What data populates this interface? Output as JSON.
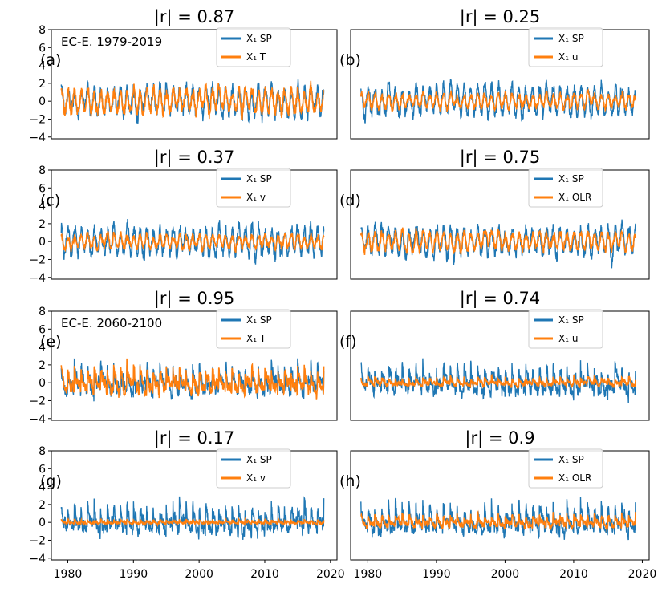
{
  "figure": {
    "colors": {
      "sp": "#1f77b4",
      "var": "#ff7f0e"
    },
    "x_ticks": [
      "1980",
      "1990",
      "2000",
      "2010",
      "2020"
    ],
    "y_ticks": [
      "8",
      "6",
      "4",
      "2",
      "0",
      "−2",
      "−4"
    ]
  },
  "chart_data": [
    {
      "type": "line",
      "panel": "(a)",
      "title": "|r| = 0.87",
      "annotation": "EC-E. 1979-2019",
      "xlim": [
        1977.5,
        2021.0
      ],
      "ylim": [
        -4.2,
        8.0
      ],
      "series": [
        {
          "name": "X₁ SP",
          "color": "#1f77b4",
          "amplitude": 1.8
        },
        {
          "name": "X₁ T",
          "color": "#ff7f0e",
          "amplitude": 1.5
        }
      ],
      "correlation": 0.87,
      "legend": "upper-right",
      "x_range": [
        1979,
        2019
      ]
    },
    {
      "type": "line",
      "panel": "(b)",
      "title": "|r| = 0.25",
      "annotation": "",
      "xlim": [
        1977.5,
        2021.0
      ],
      "ylim": [
        -4.2,
        8.0
      ],
      "series": [
        {
          "name": "X₁ SP",
          "color": "#1f77b4",
          "amplitude": 1.8
        },
        {
          "name": "X₁ u",
          "color": "#ff7f0e",
          "amplitude": 0.9
        }
      ],
      "correlation": 0.25,
      "legend": "upper-right",
      "x_range": [
        1979,
        2019
      ]
    },
    {
      "type": "line",
      "panel": "(c)",
      "title": "|r| = 0.37",
      "annotation": "",
      "xlim": [
        1977.5,
        2021.0
      ],
      "ylim": [
        -4.2,
        8.0
      ],
      "series": [
        {
          "name": "X₁ SP",
          "color": "#1f77b4",
          "amplitude": 1.8
        },
        {
          "name": "X₁ v",
          "color": "#ff7f0e",
          "amplitude": 0.9
        }
      ],
      "correlation": 0.37,
      "legend": "upper-right",
      "x_range": [
        1979,
        2019
      ]
    },
    {
      "type": "line",
      "panel": "(d)",
      "title": "|r| = 0.75",
      "annotation": "",
      "xlim": [
        1977.5,
        2021.0
      ],
      "ylim": [
        -4.2,
        8.0
      ],
      "series": [
        {
          "name": "X₁ SP",
          "color": "#1f77b4",
          "amplitude": 1.8
        },
        {
          "name": "X₁ OLR",
          "color": "#ff7f0e",
          "amplitude": 1.1
        }
      ],
      "correlation": 0.75,
      "legend": "upper-right",
      "x_range": [
        1979,
        2019
      ]
    },
    {
      "type": "line",
      "panel": "(e)",
      "title": "|r| = 0.95",
      "annotation": "EC-E. 2060-2100",
      "xlim": [
        1977.5,
        2021.0
      ],
      "ylim": [
        -4.2,
        8.0
      ],
      "series": [
        {
          "name": "X₁ SP",
          "color": "#1f77b4",
          "amplitude": 2.0
        },
        {
          "name": "X₁ T",
          "color": "#ff7f0e",
          "amplitude": 1.7
        }
      ],
      "correlation": 0.95,
      "legend": "upper-right",
      "x_range": [
        1979,
        2019
      ]
    },
    {
      "type": "line",
      "panel": "(f)",
      "title": "|r| = 0.74",
      "annotation": "",
      "xlim": [
        1977.5,
        2021.0
      ],
      "ylim": [
        -4.2,
        8.0
      ],
      "series": [
        {
          "name": "X₁ SP",
          "color": "#1f77b4",
          "amplitude": 2.0
        },
        {
          "name": "X₁ u",
          "color": "#ff7f0e",
          "amplitude": 0.6
        }
      ],
      "correlation": 0.74,
      "legend": "upper-right",
      "x_range": [
        1979,
        2019
      ]
    },
    {
      "type": "line",
      "panel": "(g)",
      "title": "|r| = 0.17",
      "annotation": "",
      "xlim": [
        1977.5,
        2021.0
      ],
      "ylim": [
        -4.2,
        8.0
      ],
      "series": [
        {
          "name": "X₁ SP",
          "color": "#1f77b4",
          "amplitude": 2.0
        },
        {
          "name": "X₁ v",
          "color": "#ff7f0e",
          "amplitude": 0.3
        }
      ],
      "correlation": 0.17,
      "legend": "upper-right",
      "x_range": [
        1979,
        2019
      ]
    },
    {
      "type": "line",
      "panel": "(h)",
      "title": "|r| = 0.9",
      "annotation": "",
      "xlim": [
        1977.5,
        2021.0
      ],
      "ylim": [
        -4.2,
        8.0
      ],
      "series": [
        {
          "name": "X₁ SP",
          "color": "#1f77b4",
          "amplitude": 2.0
        },
        {
          "name": "X₁ OLR",
          "color": "#ff7f0e",
          "amplitude": 0.9
        }
      ],
      "correlation": 0.9,
      "legend": "upper-right",
      "x_range": [
        1979,
        2019
      ]
    }
  ]
}
